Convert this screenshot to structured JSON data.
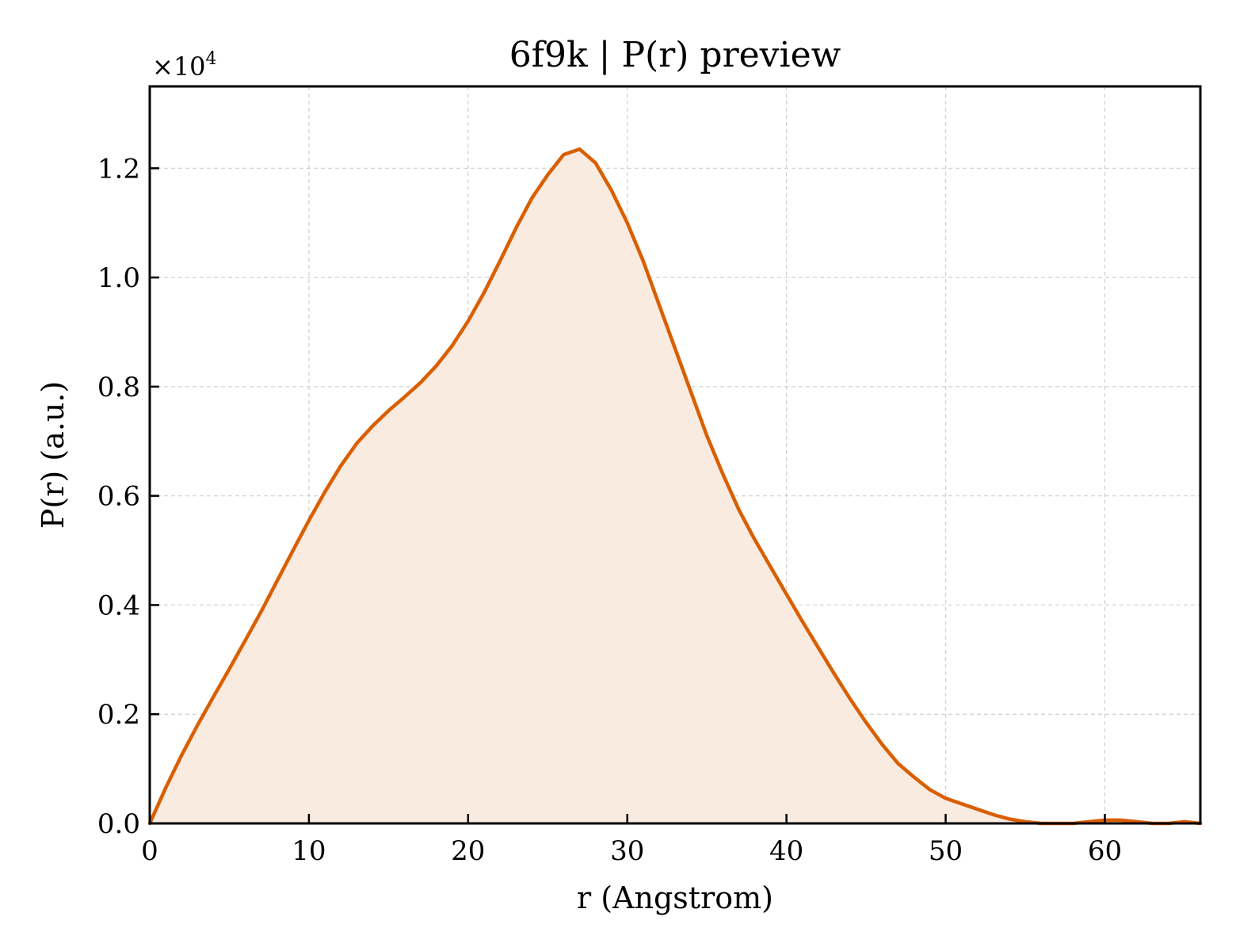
{
  "chart_data": {
    "type": "area",
    "title": "6f9k | P(r) preview",
    "xlabel": "r (Angstrom)",
    "ylabel": "P(r) (a.u.)",
    "y_scale_label_base": "×10",
    "y_scale_label_exp": "4",
    "y_multiplier": 10000,
    "xlim": [
      0,
      66
    ],
    "ylim": [
      0,
      1.35
    ],
    "xticks": [
      0,
      10,
      20,
      30,
      40,
      50,
      60
    ],
    "xtick_labels": [
      "0",
      "10",
      "20",
      "30",
      "40",
      "50",
      "60"
    ],
    "yticks": [
      0.0,
      0.2,
      0.4,
      0.6,
      0.8,
      1.0,
      1.2
    ],
    "ytick_labels": [
      "0.0",
      "0.2",
      "0.4",
      "0.6",
      "0.8",
      "1.0",
      "1.2"
    ],
    "grid": true,
    "line_color": "#d95f02",
    "fill_color": "#f9ebe0",
    "series": [
      {
        "x": [
          0,
          1,
          2,
          3,
          4,
          5,
          6,
          7,
          8,
          9,
          10,
          11,
          12,
          13,
          14,
          15,
          16,
          17,
          18,
          19,
          20,
          21,
          22,
          23,
          24,
          25,
          26,
          27,
          28,
          29,
          30,
          31,
          32,
          33,
          34,
          35,
          36,
          37,
          38,
          39,
          40,
          41,
          42,
          43,
          44,
          45,
          46,
          47,
          48,
          49,
          50,
          51,
          52,
          53,
          54,
          55,
          56,
          57,
          58,
          59,
          60,
          61,
          62,
          63,
          64,
          65,
          66
        ],
        "y": [
          0.0,
          0.065,
          0.125,
          0.18,
          0.232,
          0.283,
          0.335,
          0.388,
          0.444,
          0.5,
          0.555,
          0.607,
          0.655,
          0.696,
          0.728,
          0.756,
          0.781,
          0.807,
          0.838,
          0.875,
          0.92,
          0.972,
          1.03,
          1.09,
          1.145,
          1.188,
          1.225,
          1.235,
          1.21,
          1.16,
          1.1,
          1.03,
          0.95,
          0.87,
          0.79,
          0.71,
          0.64,
          0.575,
          0.52,
          0.47,
          0.42,
          0.37,
          0.322,
          0.274,
          0.228,
          0.185,
          0.145,
          0.11,
          0.085,
          0.062,
          0.046,
          0.036,
          0.026,
          0.016,
          0.008,
          0.003,
          0.0,
          0.0,
          0.0,
          0.003,
          0.006,
          0.006,
          0.003,
          0.0,
          0.0,
          0.003,
          0.0
        ]
      }
    ]
  }
}
